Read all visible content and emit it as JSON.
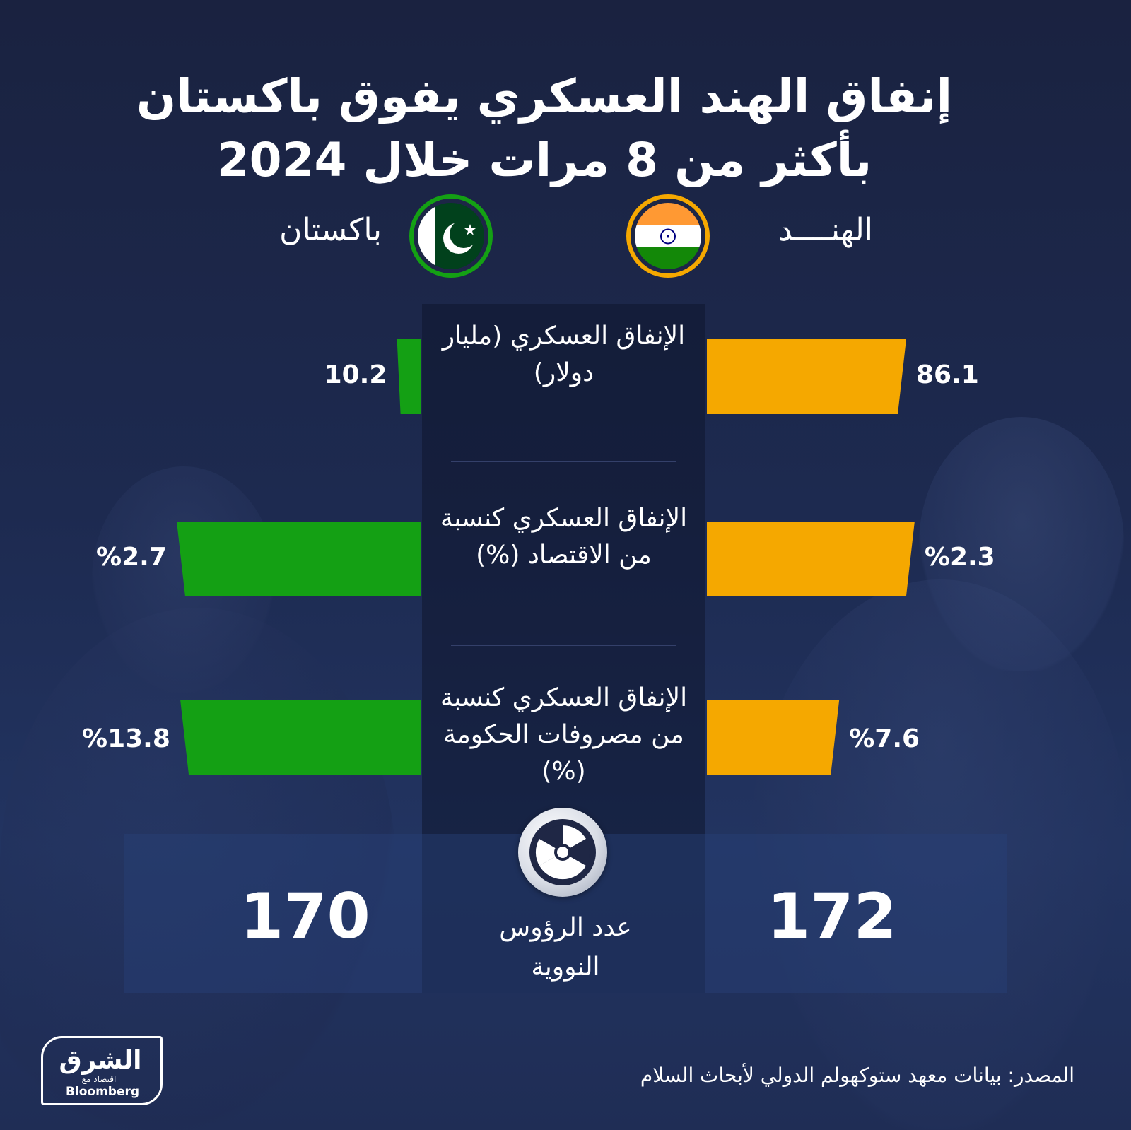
{
  "title": "إنفاق الهند العسكري يفوق باكستان بأكثر من 8 مرات خلال 2024",
  "countries": {
    "india": {
      "name": "الهنــــد",
      "color": "#f5a800"
    },
    "pakistan": {
      "name": "باكستان",
      "color": "#14a014"
    }
  },
  "chart_data": {
    "type": "bar",
    "title": "إنفاق الهند العسكري يفوق باكستان بأكثر من 8 مرات خلال 2024",
    "categories": [
      "الإنفاق العسكري (مليار دولار)",
      "الإنفاق العسكري كنسبة من الاقتصاد (%)",
      "الإنفاق العسكري كنسبة من مصروفات الحكومة (%)"
    ],
    "series": [
      {
        "name": "الهنــــد",
        "values": [
          86.1,
          2.3,
          7.6
        ],
        "labels": [
          "86.1",
          "%2.3",
          "%7.6"
        ],
        "color": "#f5a800"
      },
      {
        "name": "باكستان",
        "values": [
          10.2,
          2.7,
          13.8
        ],
        "labels": [
          "10.2",
          "%2.7",
          "%13.8"
        ],
        "color": "#14a014"
      }
    ],
    "nuclear_warheads": {
      "label": "عدد الرؤوس النووية",
      "india": "172",
      "pakistan": "170"
    }
  },
  "metrics": [
    {
      "label": "الإنفاق العسكري (مليار دولار)"
    },
    {
      "label": "الإنفاق العسكري كنسبة من الاقتصاد (%)"
    },
    {
      "label": "الإنفاق العسكري كنسبة من مصروفات الحكومة (%)"
    }
  ],
  "source": "المصدر: بيانات معهد ستوكهولم الدولي لأبحاث السلام",
  "logo": {
    "arabic": "الشرق",
    "small": "اقتصاد مع",
    "english": "Bloomberg"
  },
  "icons": {
    "india_flag": "india-flag-icon",
    "pakistan_flag": "pakistan-flag-icon",
    "nuclear": "radiation-icon"
  }
}
